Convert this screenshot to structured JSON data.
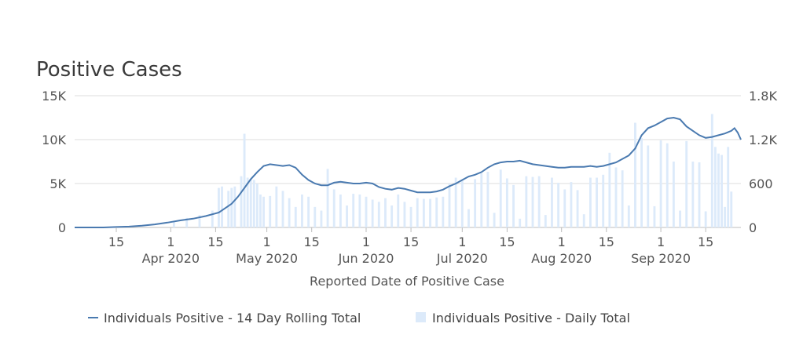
{
  "chart_data": {
    "type": "bar+line",
    "title": "Positive Cases",
    "xlabel": "Reported Date of Positive Case",
    "y_left": {
      "ticks": [
        0,
        5000,
        10000,
        15000
      ],
      "tick_labels": [
        "0",
        "5K",
        "10K",
        "15K"
      ],
      "range": [
        0,
        15000
      ]
    },
    "y_right": {
      "ticks": [
        0,
        600,
        1200,
        1800
      ],
      "tick_labels": [
        "0",
        "600",
        "1.2K",
        "1.8K"
      ],
      "range": [
        0,
        1800
      ]
    },
    "x_ticks": [
      {
        "day": 14,
        "label": "15"
      },
      {
        "day": 31,
        "label": "1",
        "sub": "Apr 2020"
      },
      {
        "day": 45,
        "label": "15"
      },
      {
        "day": 61,
        "label": "1",
        "sub": "May 2020"
      },
      {
        "day": 75,
        "label": "15"
      },
      {
        "day": 92,
        "label": "1",
        "sub": "Jun 2020"
      },
      {
        "day": 106,
        "label": "15"
      },
      {
        "day": 122,
        "label": "1",
        "sub": "Jul 2020"
      },
      {
        "day": 136,
        "label": "15"
      },
      {
        "day": 153,
        "label": "1",
        "sub": "Aug 2020"
      },
      {
        "day": 167,
        "label": "15"
      },
      {
        "day": 184,
        "label": "1",
        "sub": "Sep 2020"
      },
      {
        "day": 198,
        "label": "15"
      }
    ],
    "x_range": [
      1,
      209
    ],
    "series": [
      {
        "name": "Individuals Positive - 14 Day Rolling Total",
        "kind": "line",
        "axis": "left",
        "color": "#4a7ab0",
        "points": [
          [
            1,
            0
          ],
          [
            10,
            0
          ],
          [
            14,
            50
          ],
          [
            18,
            100
          ],
          [
            22,
            200
          ],
          [
            26,
            350
          ],
          [
            30,
            550
          ],
          [
            34,
            800
          ],
          [
            38,
            1000
          ],
          [
            42,
            1300
          ],
          [
            46,
            1700
          ],
          [
            48,
            2200
          ],
          [
            50,
            2700
          ],
          [
            52,
            3500
          ],
          [
            54,
            4500
          ],
          [
            56,
            5500
          ],
          [
            58,
            6300
          ],
          [
            60,
            7000
          ],
          [
            62,
            7200
          ],
          [
            64,
            7100
          ],
          [
            66,
            7000
          ],
          [
            68,
            7100
          ],
          [
            70,
            6800
          ],
          [
            72,
            6000
          ],
          [
            74,
            5400
          ],
          [
            76,
            5000
          ],
          [
            78,
            4800
          ],
          [
            80,
            4800
          ],
          [
            82,
            5100
          ],
          [
            84,
            5200
          ],
          [
            86,
            5100
          ],
          [
            88,
            5000
          ],
          [
            90,
            5000
          ],
          [
            92,
            5100
          ],
          [
            94,
            5000
          ],
          [
            96,
            4600
          ],
          [
            98,
            4400
          ],
          [
            100,
            4300
          ],
          [
            102,
            4500
          ],
          [
            104,
            4400
          ],
          [
            106,
            4200
          ],
          [
            108,
            4000
          ],
          [
            110,
            4000
          ],
          [
            112,
            4000
          ],
          [
            114,
            4100
          ],
          [
            116,
            4300
          ],
          [
            118,
            4700
          ],
          [
            120,
            5000
          ],
          [
            122,
            5400
          ],
          [
            124,
            5800
          ],
          [
            126,
            6000
          ],
          [
            128,
            6300
          ],
          [
            130,
            6800
          ],
          [
            132,
            7200
          ],
          [
            134,
            7400
          ],
          [
            136,
            7500
          ],
          [
            138,
            7500
          ],
          [
            140,
            7600
          ],
          [
            142,
            7400
          ],
          [
            144,
            7200
          ],
          [
            146,
            7100
          ],
          [
            148,
            7000
          ],
          [
            150,
            6900
          ],
          [
            152,
            6800
          ],
          [
            154,
            6800
          ],
          [
            156,
            6900
          ],
          [
            158,
            6900
          ],
          [
            160,
            6900
          ],
          [
            162,
            7000
          ],
          [
            164,
            6900
          ],
          [
            166,
            7000
          ],
          [
            168,
            7200
          ],
          [
            170,
            7400
          ],
          [
            172,
            7800
          ],
          [
            174,
            8200
          ],
          [
            176,
            9000
          ],
          [
            178,
            10500
          ],
          [
            180,
            11300
          ],
          [
            182,
            11600
          ],
          [
            184,
            12000
          ],
          [
            186,
            12400
          ],
          [
            188,
            12500
          ],
          [
            190,
            12300
          ],
          [
            192,
            11500
          ],
          [
            194,
            11000
          ],
          [
            196,
            10500
          ],
          [
            198,
            10200
          ],
          [
            200,
            10300
          ],
          [
            202,
            10500
          ],
          [
            204,
            10700
          ],
          [
            206,
            11000
          ],
          [
            207,
            11300
          ],
          [
            208,
            10800
          ],
          [
            209,
            10000
          ]
        ]
      },
      {
        "name": "Individuals Positive - Daily Total",
        "kind": "bar",
        "axis": "right",
        "color": "#dceafa",
        "points": [
          [
            32,
            90
          ],
          [
            36,
            130
          ],
          [
            40,
            170
          ],
          [
            44,
            230
          ],
          [
            46,
            540
          ],
          [
            47,
            560
          ],
          [
            49,
            500
          ],
          [
            50,
            540
          ],
          [
            51,
            560
          ],
          [
            53,
            700
          ],
          [
            54,
            1280
          ],
          [
            55,
            680
          ],
          [
            56,
            660
          ],
          [
            57,
            650
          ],
          [
            58,
            600
          ],
          [
            59,
            450
          ],
          [
            60,
            420
          ],
          [
            62,
            430
          ],
          [
            64,
            560
          ],
          [
            66,
            500
          ],
          [
            68,
            400
          ],
          [
            70,
            280
          ],
          [
            72,
            450
          ],
          [
            74,
            420
          ],
          [
            76,
            280
          ],
          [
            78,
            230
          ],
          [
            80,
            800
          ],
          [
            82,
            520
          ],
          [
            84,
            450
          ],
          [
            86,
            300
          ],
          [
            88,
            460
          ],
          [
            90,
            450
          ],
          [
            92,
            420
          ],
          [
            94,
            380
          ],
          [
            96,
            350
          ],
          [
            98,
            400
          ],
          [
            100,
            300
          ],
          [
            102,
            450
          ],
          [
            104,
            350
          ],
          [
            106,
            280
          ],
          [
            108,
            400
          ],
          [
            110,
            390
          ],
          [
            112,
            390
          ],
          [
            114,
            410
          ],
          [
            116,
            420
          ],
          [
            118,
            600
          ],
          [
            120,
            680
          ],
          [
            122,
            640
          ],
          [
            124,
            250
          ],
          [
            126,
            660
          ],
          [
            128,
            740
          ],
          [
            130,
            760
          ],
          [
            132,
            200
          ],
          [
            134,
            790
          ],
          [
            136,
            670
          ],
          [
            138,
            580
          ],
          [
            140,
            120
          ],
          [
            142,
            700
          ],
          [
            144,
            690
          ],
          [
            146,
            700
          ],
          [
            148,
            170
          ],
          [
            150,
            680
          ],
          [
            152,
            610
          ],
          [
            154,
            520
          ],
          [
            156,
            620
          ],
          [
            158,
            510
          ],
          [
            160,
            180
          ],
          [
            162,
            680
          ],
          [
            164,
            680
          ],
          [
            166,
            720
          ],
          [
            168,
            1020
          ],
          [
            170,
            820
          ],
          [
            172,
            780
          ],
          [
            174,
            300
          ],
          [
            176,
            1430
          ],
          [
            178,
            1220
          ],
          [
            180,
            1120
          ],
          [
            182,
            290
          ],
          [
            184,
            1190
          ],
          [
            186,
            1150
          ],
          [
            188,
            900
          ],
          [
            190,
            230
          ],
          [
            192,
            1180
          ],
          [
            194,
            900
          ],
          [
            196,
            890
          ],
          [
            198,
            220
          ],
          [
            200,
            1550
          ],
          [
            201,
            1100
          ],
          [
            202,
            1010
          ],
          [
            203,
            990
          ],
          [
            204,
            280
          ],
          [
            205,
            1100
          ],
          [
            206,
            490
          ]
        ]
      }
    ],
    "legend": {
      "placement": "bottom-left",
      "items": [
        "Individuals Positive - 14 Day Rolling Total",
        "Individuals Positive - Daily Total"
      ]
    }
  }
}
